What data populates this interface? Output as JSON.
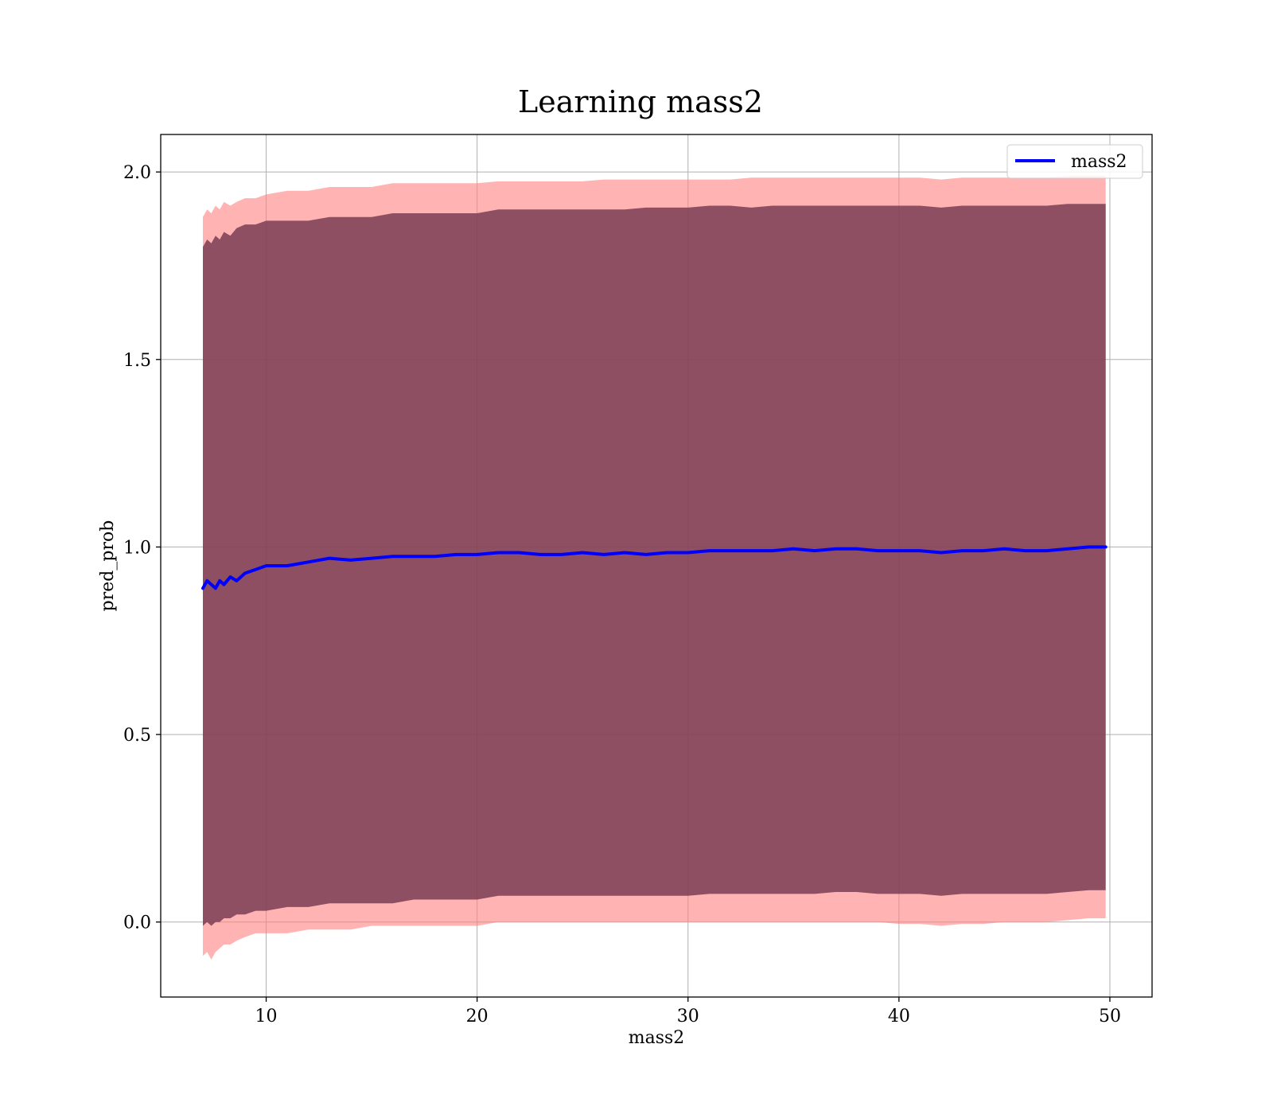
{
  "chart_data": {
    "type": "line",
    "title": "Learning mass2",
    "xlabel": "mass2",
    "ylabel": "pred_prob",
    "xlim": [
      5,
      52
    ],
    "ylim": [
      -0.2,
      2.1
    ],
    "xticks": [
      10,
      20,
      30,
      40,
      50
    ],
    "xtick_labels": [
      "10",
      "20",
      "30",
      "40",
      "50"
    ],
    "yticks": [
      0.0,
      0.5,
      1.0,
      1.5,
      2.0
    ],
    "ytick_labels": [
      "0.0",
      "0.5",
      "1.0",
      "1.5",
      "2.0"
    ],
    "grid": true,
    "legend": {
      "placement": "top-right",
      "entries": [
        "mass2"
      ]
    },
    "colors": {
      "line": "#0000ff",
      "outer_band": "#ff8080",
      "inner_band": "#7a3d55",
      "grid": "#b0b0b0"
    },
    "series": [
      {
        "name": "mass2",
        "x": [
          7.0,
          7.2,
          7.4,
          7.6,
          7.8,
          8.0,
          8.3,
          8.6,
          9.0,
          9.5,
          10.0,
          11.0,
          12.0,
          13.0,
          14.0,
          15.0,
          16.0,
          17.0,
          18.0,
          19.0,
          20.0,
          21.0,
          22.0,
          23.0,
          24.0,
          25.0,
          26.0,
          27.0,
          28.0,
          29.0,
          30.0,
          31.0,
          32.0,
          33.0,
          34.0,
          35.0,
          36.0,
          37.0,
          38.0,
          39.0,
          40.0,
          41.0,
          42.0,
          43.0,
          44.0,
          45.0,
          46.0,
          47.0,
          48.0,
          49.0,
          49.8
        ],
        "y": [
          0.89,
          0.91,
          0.9,
          0.89,
          0.91,
          0.9,
          0.92,
          0.91,
          0.93,
          0.94,
          0.95,
          0.95,
          0.96,
          0.97,
          0.965,
          0.97,
          0.975,
          0.975,
          0.975,
          0.98,
          0.98,
          0.985,
          0.985,
          0.98,
          0.98,
          0.985,
          0.98,
          0.985,
          0.98,
          0.985,
          0.985,
          0.99,
          0.99,
          0.99,
          0.99,
          0.995,
          0.99,
          0.995,
          0.995,
          0.99,
          0.99,
          0.99,
          0.985,
          0.99,
          0.99,
          0.995,
          0.99,
          0.99,
          0.995,
          1.0,
          1.0
        ],
        "band_inner_upper": [
          1.8,
          1.82,
          1.81,
          1.83,
          1.82,
          1.84,
          1.83,
          1.85,
          1.86,
          1.86,
          1.87,
          1.87,
          1.87,
          1.88,
          1.88,
          1.88,
          1.89,
          1.89,
          1.89,
          1.89,
          1.89,
          1.9,
          1.9,
          1.9,
          1.9,
          1.9,
          1.9,
          1.9,
          1.905,
          1.905,
          1.905,
          1.91,
          1.91,
          1.905,
          1.91,
          1.91,
          1.91,
          1.91,
          1.91,
          1.91,
          1.91,
          1.91,
          1.905,
          1.91,
          1.91,
          1.91,
          1.91,
          1.91,
          1.915,
          1.915,
          1.915
        ],
        "band_inner_lower": [
          -0.01,
          0.0,
          -0.01,
          0.0,
          0.0,
          0.01,
          0.01,
          0.02,
          0.02,
          0.03,
          0.03,
          0.04,
          0.04,
          0.05,
          0.05,
          0.05,
          0.05,
          0.06,
          0.06,
          0.06,
          0.06,
          0.07,
          0.07,
          0.07,
          0.07,
          0.07,
          0.07,
          0.07,
          0.07,
          0.07,
          0.07,
          0.075,
          0.075,
          0.075,
          0.075,
          0.075,
          0.075,
          0.08,
          0.08,
          0.075,
          0.075,
          0.075,
          0.07,
          0.075,
          0.075,
          0.075,
          0.075,
          0.075,
          0.08,
          0.085,
          0.085
        ],
        "band_outer_upper": [
          1.88,
          1.9,
          1.89,
          1.91,
          1.9,
          1.92,
          1.91,
          1.92,
          1.93,
          1.93,
          1.94,
          1.95,
          1.95,
          1.96,
          1.96,
          1.96,
          1.97,
          1.97,
          1.97,
          1.97,
          1.97,
          1.975,
          1.975,
          1.975,
          1.975,
          1.975,
          1.98,
          1.98,
          1.98,
          1.98,
          1.98,
          1.98,
          1.98,
          1.985,
          1.985,
          1.985,
          1.985,
          1.985,
          1.985,
          1.985,
          1.985,
          1.985,
          1.98,
          1.985,
          1.985,
          1.985,
          1.985,
          1.985,
          1.99,
          1.99,
          1.99
        ],
        "band_outer_lower": [
          -0.09,
          -0.08,
          -0.1,
          -0.08,
          -0.07,
          -0.06,
          -0.06,
          -0.05,
          -0.04,
          -0.03,
          -0.03,
          -0.03,
          -0.02,
          -0.02,
          -0.02,
          -0.01,
          -0.01,
          -0.01,
          -0.01,
          -0.01,
          -0.01,
          0.0,
          0.0,
          0.0,
          0.0,
          0.0,
          0.0,
          0.0,
          0.0,
          0.0,
          0.0,
          0.0,
          0.0,
          0.0,
          0.0,
          0.0,
          0.0,
          0.0,
          0.0,
          0.0,
          -0.005,
          -0.005,
          -0.01,
          -0.005,
          -0.005,
          0.0,
          0.0,
          0.0,
          0.005,
          0.01,
          0.01
        ]
      }
    ]
  }
}
